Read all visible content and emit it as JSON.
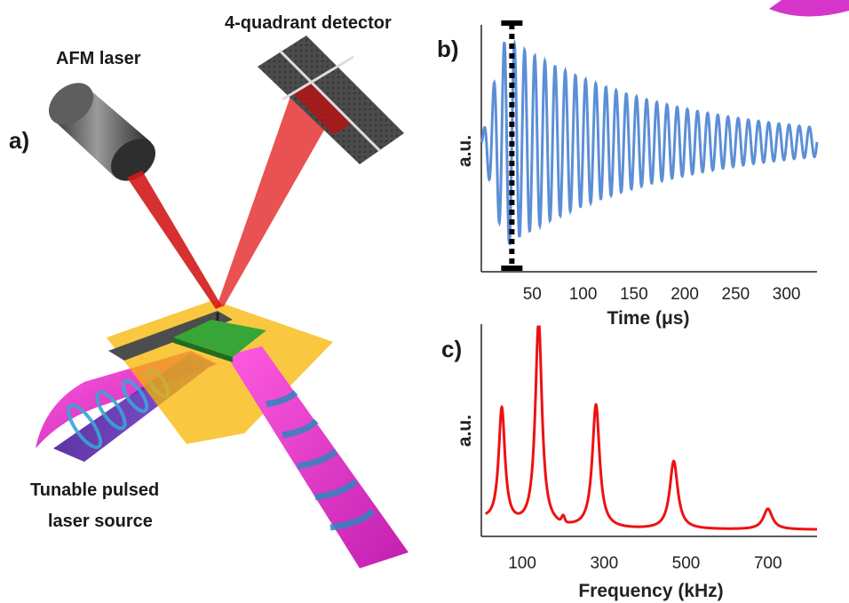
{
  "figure": {
    "panel_a": {
      "letter": "a)",
      "labels": {
        "afm_laser": "AFM laser",
        "detector": "4-quadrant detector",
        "source_line1": "Tunable pulsed",
        "source_line2": "laser source"
      },
      "colors": {
        "afm_beam": "#d11a1a",
        "pump_beam": "#e33fd6",
        "sample": "#2f9a2f",
        "stage": "#f5b400",
        "cantilever": "#555555"
      }
    },
    "panel_b": {
      "letter": "b)"
    },
    "panel_c": {
      "letter": "c)"
    }
  },
  "chart_data": [
    {
      "type": "line",
      "panel": "b",
      "xlabel": "Time (μs)",
      "ylabel": "a.u.",
      "xlim": [
        0,
        330
      ],
      "xticks": [
        50,
        100,
        150,
        200,
        250,
        300
      ],
      "series": [
        {
          "color": "#5b8fd6",
          "description": "decaying oscillation (ring-down) of cantilever",
          "x": [
            0,
            330
          ],
          "envelope_start": 1.0,
          "envelope_end": 0.12,
          "cycles": 33
        }
      ],
      "marker": {
        "type": "dashed-bar",
        "x": 30,
        "color": "#000000"
      }
    },
    {
      "type": "line",
      "panel": "c",
      "xlabel": "Frequency (kHz)",
      "ylabel": "a.u.",
      "xlim": [
        0,
        820
      ],
      "xticks": [
        100,
        300,
        500,
        700
      ],
      "series": [
        {
          "color": "#ee1111",
          "peaks": [
            {
              "x": 50,
              "y": 0.56
            },
            {
              "x": 140,
              "y": 1.0
            },
            {
              "x": 280,
              "y": 0.6
            },
            {
              "x": 470,
              "y": 0.33
            },
            {
              "x": 700,
              "y": 0.1
            }
          ]
        }
      ]
    }
  ]
}
